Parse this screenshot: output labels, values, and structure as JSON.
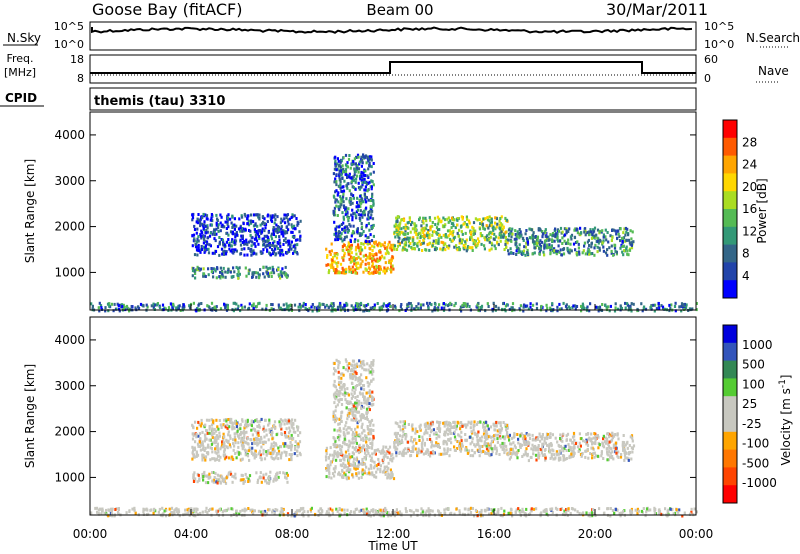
{
  "header": {
    "station": "Goose Bay (fitACF)",
    "beam": "Beam 00",
    "date": "30/Mar/2011"
  },
  "noise_panel": {
    "left_label": "N.Sky",
    "left_ticks": [
      "10^5",
      "10^0"
    ],
    "right_ticks": [
      "10^5",
      "10^0"
    ],
    "right_label": "N.Search"
  },
  "freq_panel": {
    "left_label_1": "Freq.",
    "left_label_2": "[MHz]",
    "left_ticks": [
      "18",
      "8"
    ],
    "right_ticks": [
      "60",
      "0"
    ],
    "right_label": "Nave"
  },
  "cpid": {
    "label": "CPID",
    "value": "themis (tau) 3310"
  },
  "time_axis": {
    "label": "Time UT",
    "ticks": [
      "00:00",
      "04:00",
      "08:00",
      "12:00",
      "16:00",
      "20:00",
      "00:00"
    ]
  },
  "chart_data": [
    {
      "type": "heatmap",
      "panel": "power",
      "ylabel": "Slant Range [km]",
      "x_range_hours": [
        0,
        24
      ],
      "ylim": [
        180,
        4500
      ],
      "y_ticks": [
        "1000",
        "2000",
        "3000",
        "4000"
      ],
      "colorbar": {
        "label": "Power [dB]",
        "ticks": [
          "28",
          "24",
          "20",
          "16",
          "12",
          "8",
          "4"
        ],
        "colors": [
          "#ff0000",
          "#ff5a00",
          "#ffa500",
          "#ffd700",
          "#aadd22",
          "#55bb55",
          "#339977",
          "#336688",
          "#2244aa",
          "#0000ff"
        ]
      },
      "regions": [
        {
          "t": [
            4.0,
            7.8
          ],
          "r": [
            900,
            1150
          ],
          "level": 0.35
        },
        {
          "t": [
            4.0,
            8.3
          ],
          "r": [
            1400,
            2300
          ],
          "level": 0.15
        },
        {
          "t": [
            9.3,
            12.0
          ],
          "r": [
            1000,
            1700
          ],
          "level": 0.8
        },
        {
          "t": [
            9.6,
            11.2
          ],
          "r": [
            1700,
            3600
          ],
          "level": 0.25
        },
        {
          "t": [
            12.0,
            16.5
          ],
          "r": [
            1500,
            2250
          ],
          "level": 0.55
        },
        {
          "t": [
            16.5,
            21.5
          ],
          "r": [
            1400,
            2000
          ],
          "level": 0.35
        },
        {
          "t": [
            0.0,
            24.0
          ],
          "r": [
            190,
            360
          ],
          "level": 0.3
        }
      ]
    },
    {
      "type": "heatmap",
      "panel": "velocity",
      "ylabel": "Slant Range [km]",
      "x_range_hours": [
        0,
        24
      ],
      "ylim": [
        180,
        4500
      ],
      "y_ticks": [
        "1000",
        "2000",
        "3000",
        "4000"
      ],
      "colorbar": {
        "label": "Velocity [m s^-1]",
        "ticks": [
          "1000",
          "500",
          "100",
          "25",
          "-25",
          "-100",
          "-500",
          "-1000"
        ],
        "colors": [
          "#0000dd",
          "#3355bb",
          "#338855",
          "#55cc33",
          "#c8c8c0",
          "#c8c8c0",
          "#ffa500",
          "#ff7700",
          "#ff4400",
          "#ff0000"
        ]
      },
      "regions": [
        {
          "t": [
            4.0,
            7.8
          ],
          "r": [
            900,
            1150
          ],
          "level": 0.5
        },
        {
          "t": [
            4.0,
            8.3
          ],
          "r": [
            1400,
            2300
          ],
          "level": 0.5
        },
        {
          "t": [
            9.3,
            12.0
          ],
          "r": [
            1000,
            1700
          ],
          "level": 0.5
        },
        {
          "t": [
            9.6,
            11.2
          ],
          "r": [
            1700,
            3600
          ],
          "level": 0.5
        },
        {
          "t": [
            12.0,
            16.5
          ],
          "r": [
            1500,
            2250
          ],
          "level": 0.5
        },
        {
          "t": [
            16.5,
            21.5
          ],
          "r": [
            1400,
            2000
          ],
          "level": 0.5
        },
        {
          "t": [
            0.0,
            24.0
          ],
          "r": [
            190,
            360
          ],
          "level": 0.5
        }
      ]
    }
  ]
}
